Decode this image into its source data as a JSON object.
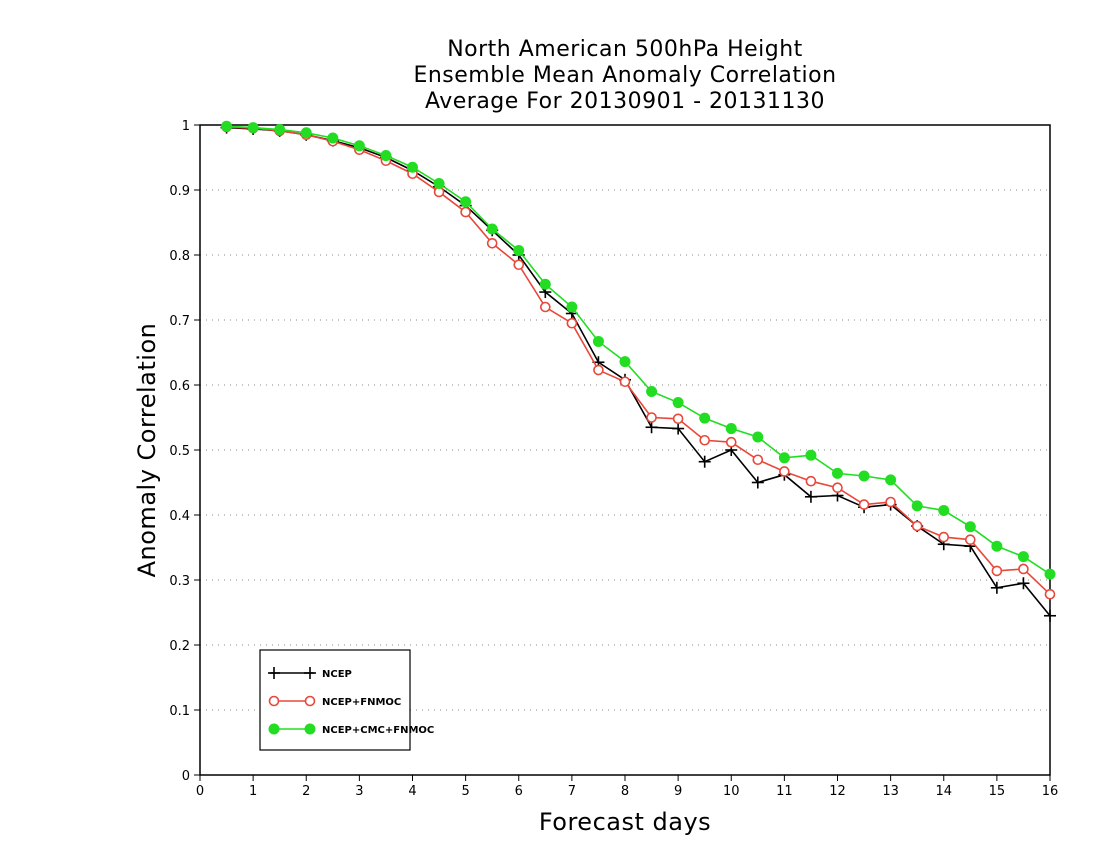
{
  "chart_data": {
    "type": "line",
    "title": [
      "North American 500hPa Height",
      "Ensemble Mean Anomaly Correlation",
      "Average For 20130901 - 20131130"
    ],
    "xlabel": "Forecast days",
    "ylabel": "Anomaly Correlation",
    "xlim": [
      0,
      16
    ],
    "ylim": [
      0,
      1
    ],
    "xticks": [
      "0",
      "1",
      "2",
      "3",
      "4",
      "5",
      "6",
      "7",
      "8",
      "9",
      "10",
      "11",
      "12",
      "13",
      "14",
      "15",
      "16"
    ],
    "yticks": [
      "0",
      "0.1",
      "0.2",
      "0.3",
      "0.4",
      "0.5",
      "0.6",
      "0.7",
      "0.8",
      "0.9",
      "1"
    ],
    "grid": "horizontal dotted",
    "legend_position": "bottom-left",
    "x": [
      0.5,
      1,
      1.5,
      2,
      2.5,
      3,
      3.5,
      4,
      4.5,
      5,
      5.5,
      6,
      6.5,
      7,
      7.5,
      8,
      8.5,
      9,
      9.5,
      10,
      10.5,
      11,
      11.5,
      12,
      12.5,
      13,
      13.5,
      14,
      14.5,
      15,
      15.5,
      16
    ],
    "series": [
      {
        "name": "NCEP",
        "color": "#000000",
        "marker": "plus",
        "values": [
          0.996,
          0.994,
          0.991,
          0.985,
          0.976,
          0.965,
          0.95,
          0.93,
          0.905,
          0.876,
          0.838,
          0.8,
          0.743,
          0.71,
          0.635,
          0.608,
          0.535,
          0.533,
          0.482,
          0.5,
          0.45,
          0.462,
          0.428,
          0.43,
          0.412,
          0.416,
          0.383,
          0.355,
          0.352,
          0.288,
          0.295,
          0.245
        ]
      },
      {
        "name": "NCEP+FNMOC",
        "color": "#e8483a",
        "marker": "open-circle",
        "values": [
          0.997,
          0.995,
          0.991,
          0.985,
          0.975,
          0.962,
          0.945,
          0.925,
          0.897,
          0.866,
          0.818,
          0.785,
          0.72,
          0.695,
          0.623,
          0.605,
          0.55,
          0.548,
          0.515,
          0.512,
          0.485,
          0.467,
          0.452,
          0.442,
          0.416,
          0.42,
          0.383,
          0.366,
          0.362,
          0.314,
          0.317,
          0.278
        ]
      },
      {
        "name": "NCEP+CMC+FNMOC",
        "color": "#22dd22",
        "marker": "filled-circle",
        "values": [
          0.998,
          0.996,
          0.993,
          0.988,
          0.98,
          0.968,
          0.953,
          0.935,
          0.91,
          0.882,
          0.84,
          0.807,
          0.755,
          0.72,
          0.667,
          0.636,
          0.59,
          0.573,
          0.549,
          0.533,
          0.52,
          0.488,
          0.492,
          0.464,
          0.46,
          0.454,
          0.414,
          0.407,
          0.382,
          0.352,
          0.336,
          0.309
        ]
      }
    ]
  }
}
